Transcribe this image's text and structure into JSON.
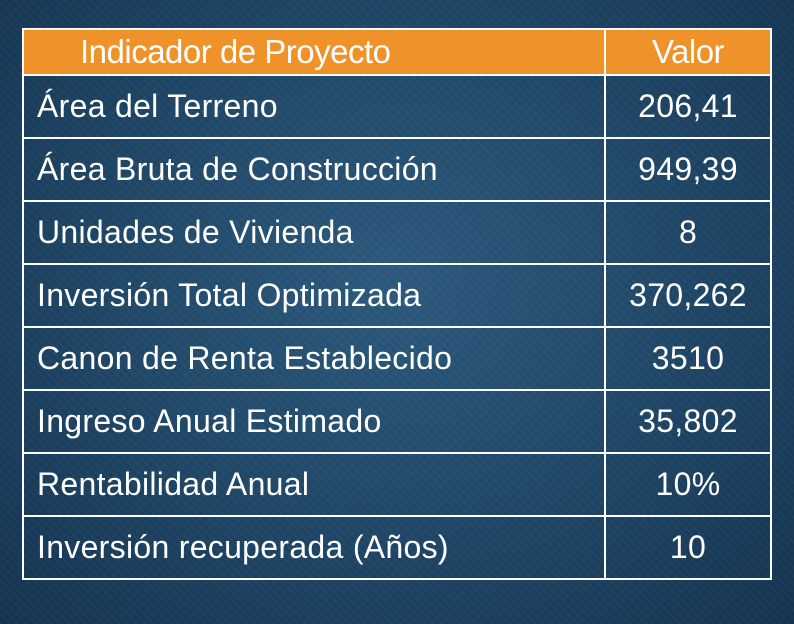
{
  "table": {
    "header": {
      "indicator": "Indicador de Proyecto",
      "value": "Valor"
    },
    "rows": [
      {
        "indicator": "Área del Terreno",
        "value": "206,41"
      },
      {
        "indicator": "Área Bruta de Construcción",
        "value": "949,39"
      },
      {
        "indicator": "Unidades de Vivienda",
        "value": "8"
      },
      {
        "indicator": "Inversión Total Optimizada",
        "value": "370,262"
      },
      {
        "indicator": "Canon de Renta Establecido",
        "value": "3510"
      },
      {
        "indicator": "Ingreso Anual Estimado",
        "value": "35,802"
      },
      {
        "indicator": "Rentabilidad Anual",
        "value": "10%"
      },
      {
        "indicator": "Inversión recuperada (Años)",
        "value": "10"
      }
    ]
  },
  "colors": {
    "header_background": "#f0922a",
    "page_background": "#1f4666",
    "grid_lines": "#ffffff",
    "text": "#ffffff"
  }
}
